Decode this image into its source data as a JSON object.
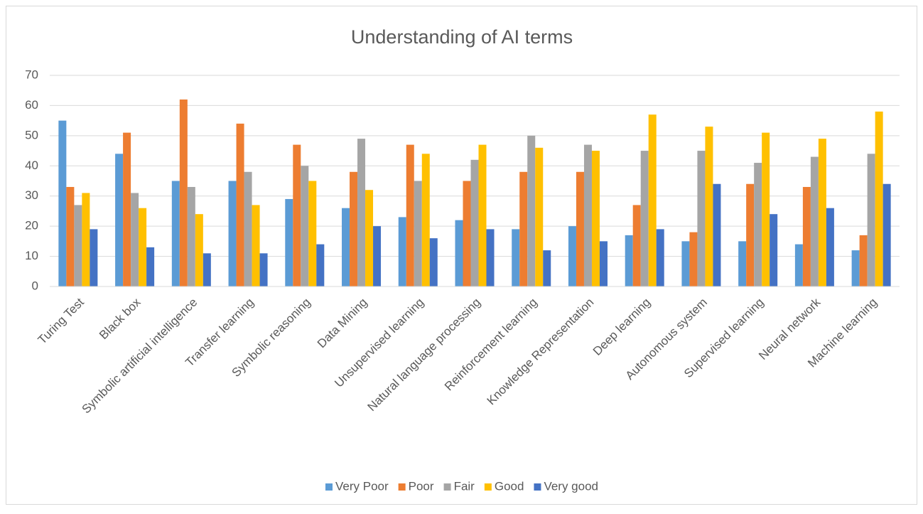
{
  "chart_data": {
    "type": "bar",
    "title": "Understanding of AI terms",
    "categories": [
      "Turing Test",
      "Black box",
      "Symbolic artificial intelligence",
      "Transfer learning",
      "Symbolic reasoning",
      "Data Mining",
      "Unsupervised learning",
      "Natural language processing",
      "Reinforcement learning",
      "Knowledge Representation",
      "Deep learning",
      "Autonomous system",
      "Supervised learning",
      "Neural network",
      "Machine learning"
    ],
    "series": [
      {
        "name": "Very Poor",
        "color": "#5b9bd5",
        "values": [
          55,
          44,
          35,
          35,
          29,
          26,
          23,
          22,
          19,
          20,
          17,
          15,
          15,
          14,
          12
        ]
      },
      {
        "name": "Poor",
        "color": "#ed7d31",
        "values": [
          33,
          51,
          62,
          54,
          47,
          38,
          47,
          35,
          38,
          38,
          27,
          18,
          34,
          33,
          17
        ]
      },
      {
        "name": "Fair",
        "color": "#a5a5a5",
        "values": [
          27,
          31,
          33,
          38,
          40,
          49,
          35,
          42,
          50,
          47,
          45,
          45,
          41,
          43,
          44
        ]
      },
      {
        "name": "Good",
        "color": "#ffc000",
        "values": [
          31,
          26,
          24,
          27,
          35,
          32,
          44,
          47,
          46,
          45,
          57,
          53,
          51,
          49,
          58
        ]
      },
      {
        "name": "Very good",
        "color": "#4472c4",
        "values": [
          19,
          13,
          11,
          11,
          14,
          20,
          16,
          19,
          12,
          15,
          19,
          34,
          24,
          26,
          34
        ]
      }
    ],
    "ylim": [
      0,
      70
    ],
    "yticks": [
      0,
      10,
      20,
      30,
      40,
      50,
      60,
      70
    ],
    "grid": true,
    "legend": "bottom"
  }
}
